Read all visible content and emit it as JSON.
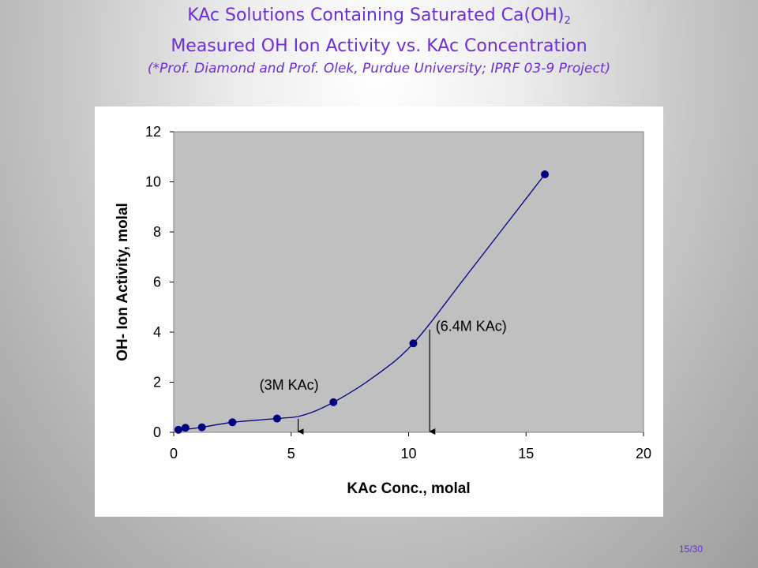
{
  "header": {
    "title_main": "KAc Solutions Containing Saturated Ca(OH)",
    "title_sub": "2",
    "title_line2": "Measured OH Ion Activity vs. KAc Concentration",
    "subtitle": "(*Prof. Diamond and Prof. Olek, Purdue University; IPRF 03-9 Project)"
  },
  "chart_data": {
    "type": "scatter",
    "xlabel": "KAc Conc., molal",
    "ylabel": "OH- Ion Activity, molal",
    "xlim": [
      0,
      20
    ],
    "ylim": [
      0,
      12
    ],
    "xticks": [
      0,
      5,
      10,
      15,
      20
    ],
    "yticks": [
      0,
      2,
      4,
      6,
      8,
      10,
      12
    ],
    "grid": false,
    "plot_background": "#c0c0c0",
    "series": [
      {
        "color": "#000080",
        "x": [
          0.2,
          0.5,
          1.2,
          2.5,
          4.4,
          6.8,
          10.2,
          15.8
        ],
        "y": [
          0.1,
          0.18,
          0.2,
          0.4,
          0.55,
          1.2,
          3.55,
          10.3
        ]
      }
    ],
    "fit_curve": {
      "color": "#000080",
      "x": [
        0.2,
        1.2,
        2.5,
        4.4,
        5.5,
        6.8,
        8.5,
        10.2,
        12.5,
        15.8
      ],
      "y": [
        0.08,
        0.2,
        0.4,
        0.55,
        0.68,
        1.2,
        2.2,
        3.55,
        6.3,
        10.3
      ]
    },
    "annotations": [
      {
        "text": "(3M KAc)",
        "arrow_x": 5.3,
        "arrow_y_top": 0.55,
        "arrow_y_bottom": 0,
        "label_x": 3.65,
        "label_y": 1.7
      },
      {
        "text": "(6.4M KAc)",
        "arrow_x": 10.9,
        "arrow_y_top": 4.1,
        "arrow_y_bottom": 0,
        "label_x": 11.15,
        "label_y": 4.05
      }
    ]
  },
  "footer": {
    "page_number": "15/30"
  }
}
